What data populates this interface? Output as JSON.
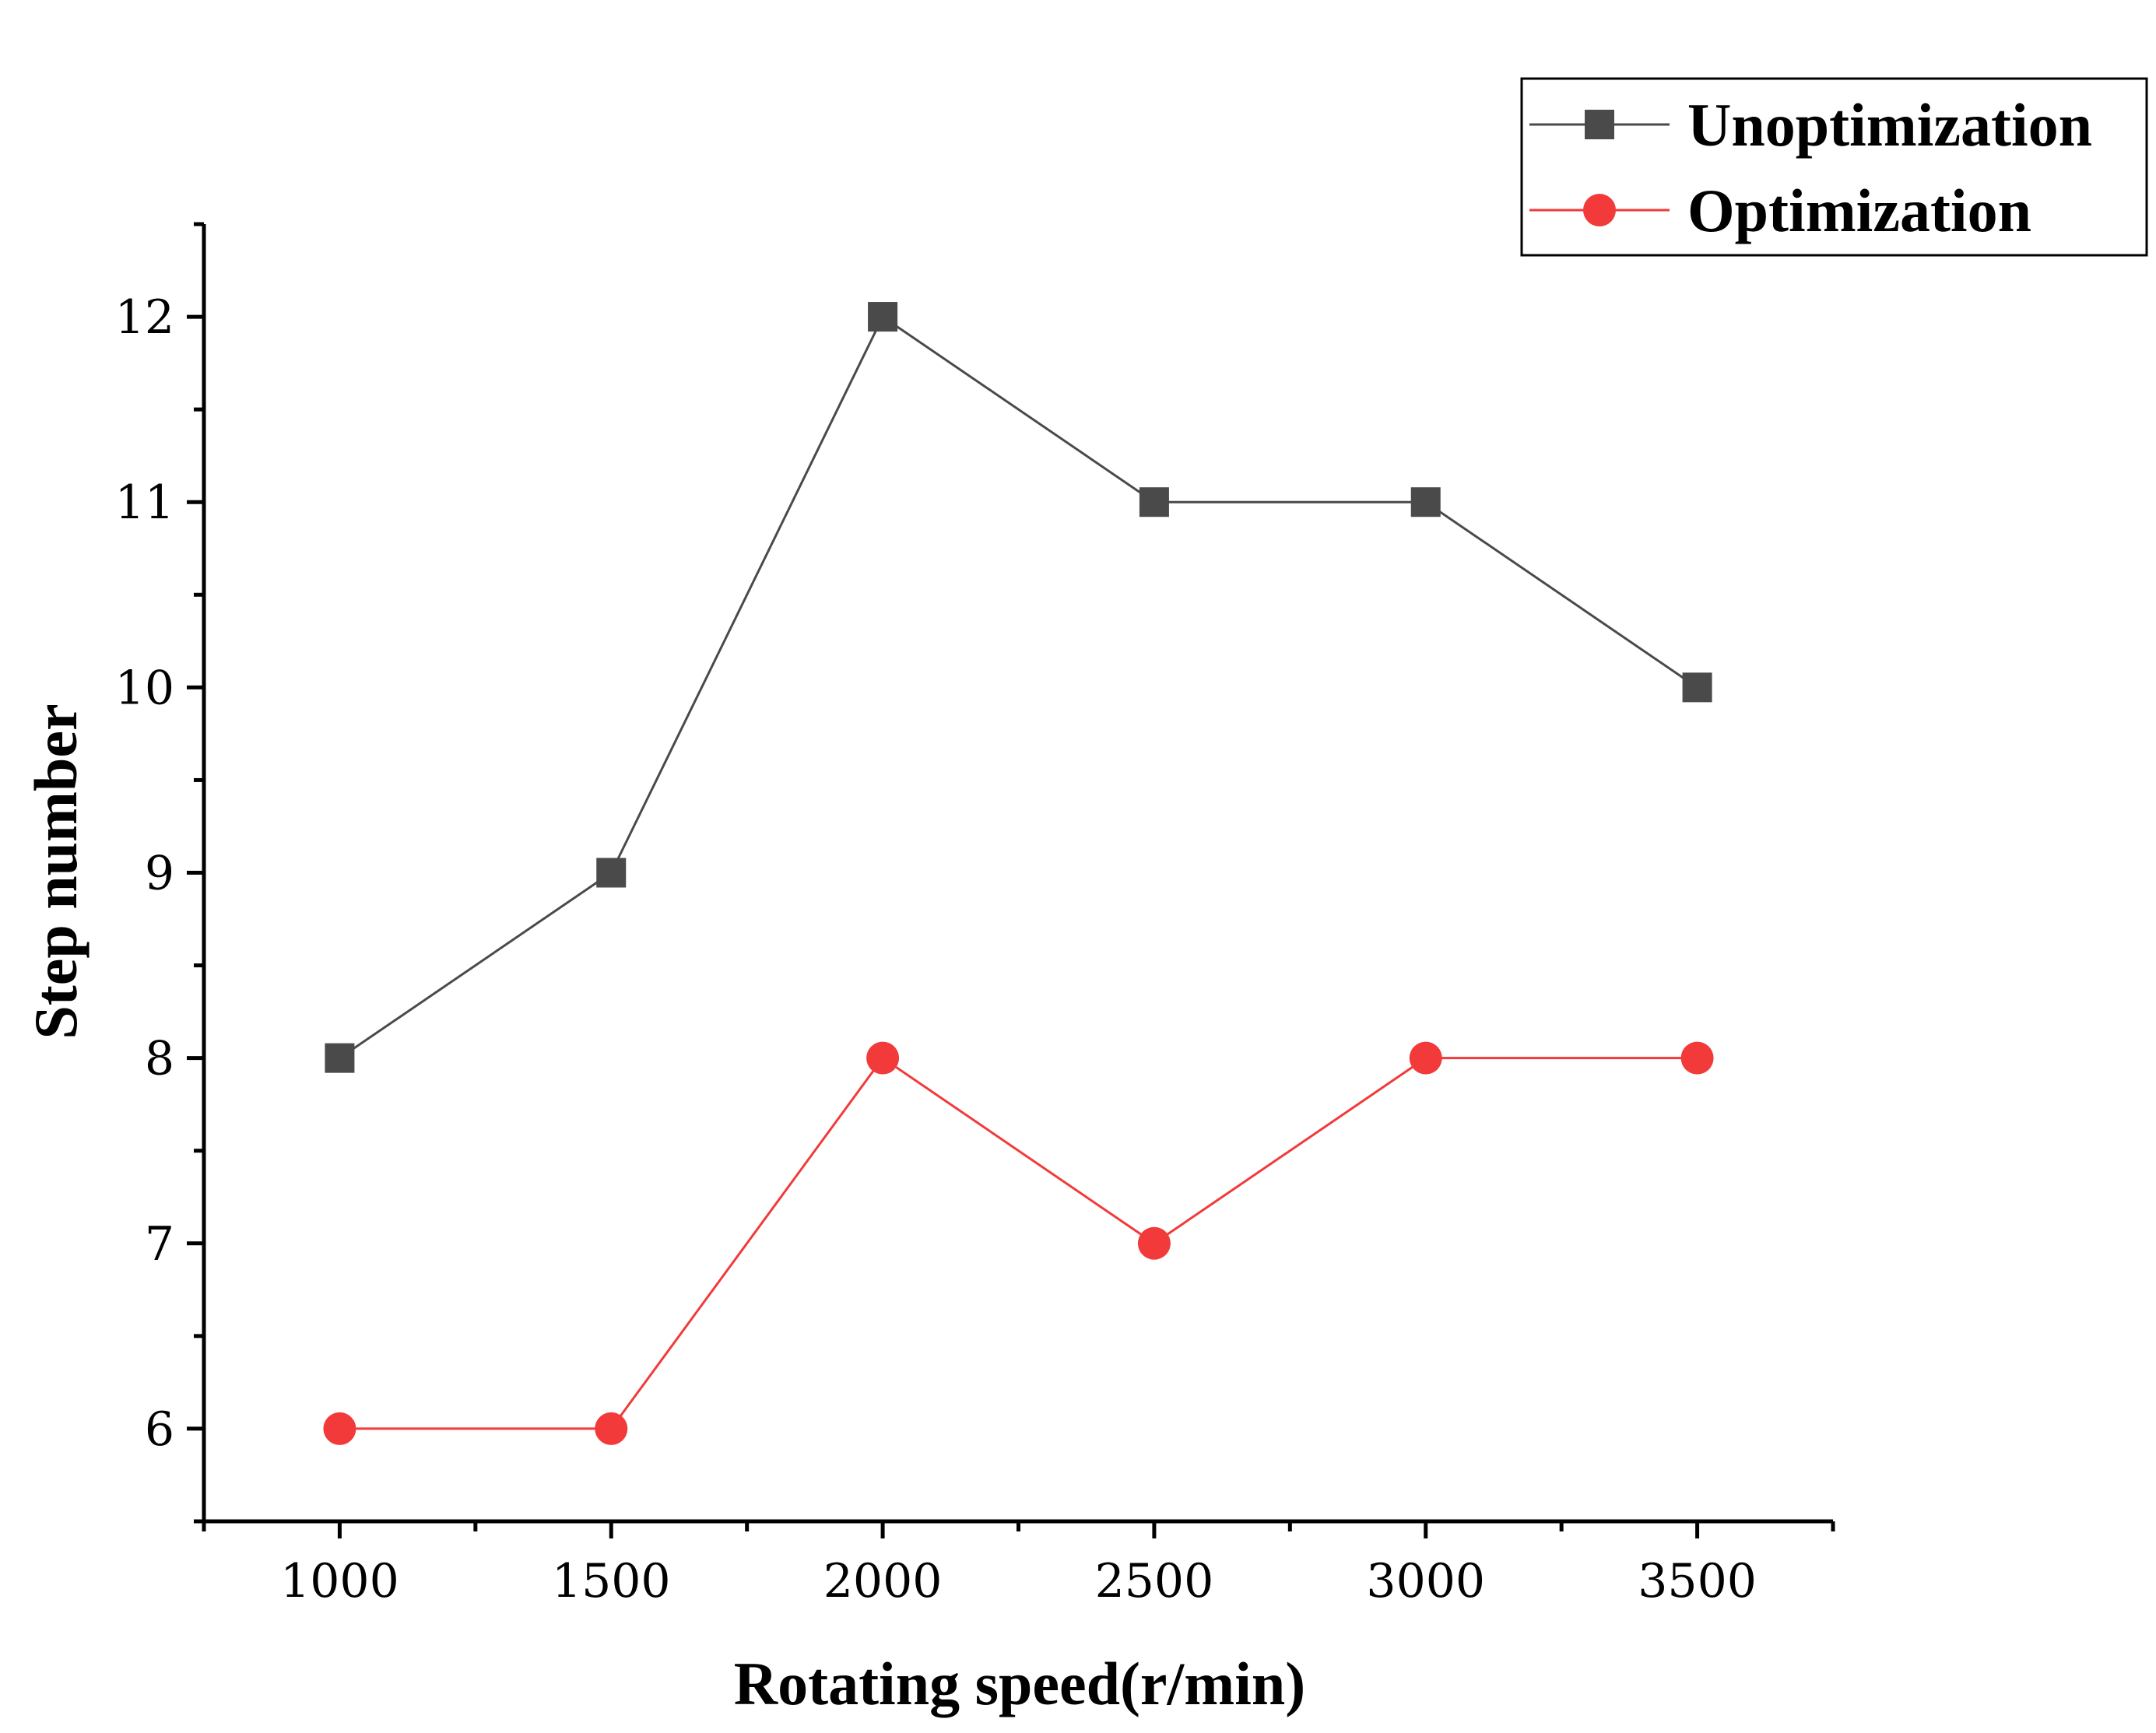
{
  "chart_data": {
    "type": "line",
    "title": "",
    "xlabel": "Rotating speed(r/min)",
    "ylabel": "Step number",
    "x": [
      1000,
      1500,
      2000,
      2500,
      3000,
      3500
    ],
    "xticks": [
      "1000",
      "1500",
      "2000",
      "2500",
      "3000",
      "3500"
    ],
    "yticks": [
      "6",
      "7",
      "8",
      "9",
      "10",
      "11",
      "12"
    ],
    "xlim": [
      750,
      3750
    ],
    "ylim": [
      5.5,
      12.5
    ],
    "grid": false,
    "legend_position": "top-right",
    "series": [
      {
        "name": "Unoptimization",
        "marker": "square",
        "color": "#4a4a4a",
        "values": [
          8,
          9,
          12,
          11,
          11,
          10
        ]
      },
      {
        "name": "Optimization",
        "marker": "circle",
        "color": "#f23a3a",
        "values": [
          6,
          6,
          8,
          7,
          8,
          8
        ]
      }
    ]
  }
}
